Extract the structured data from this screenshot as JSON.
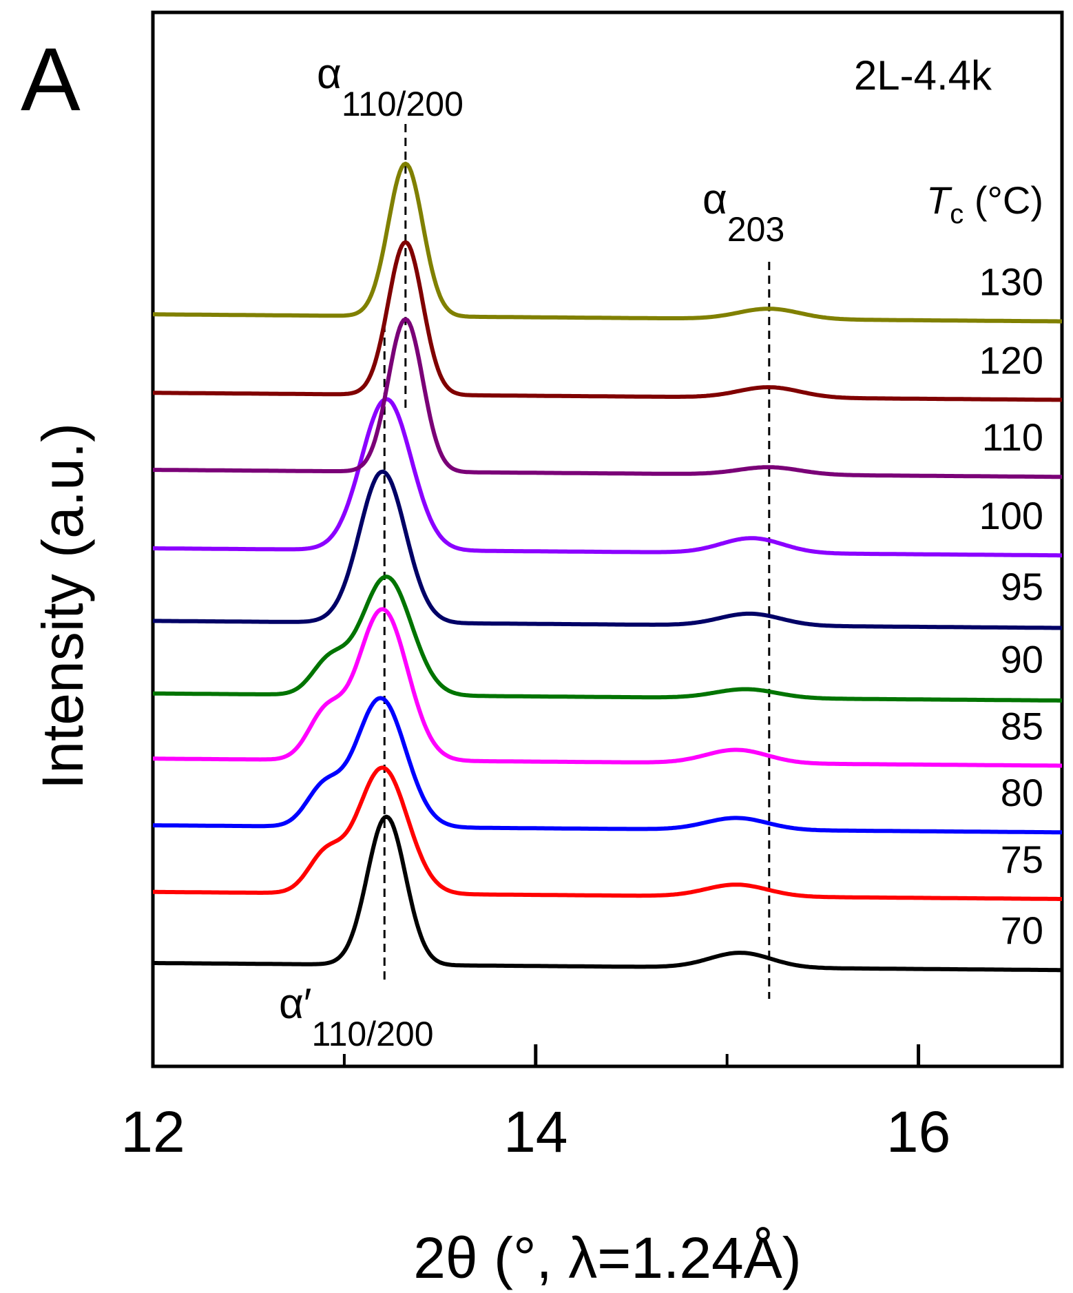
{
  "panel_label": "A",
  "sample_label": "2L-4.4k",
  "colors": {
    "70": "#000000",
    "75": "#ff0000",
    "80": "#0000ff",
    "85": "#ff00ff",
    "90": "#007400",
    "95": "#000066",
    "100": "#8b00ff",
    "110": "#7a0077",
    "120": "#800000",
    "130": "#808000"
  },
  "chart_data": {
    "type": "line",
    "title": "",
    "xlabel": "2θ (°, λ=1.24Å)",
    "ylabel": "Intensity (a.u.)",
    "xlim": [
      12.0,
      16.75
    ],
    "xticks": [
      12,
      14,
      16
    ],
    "xtick_labels": [
      "12",
      "14",
      "16"
    ],
    "minor_xticks": [
      13,
      15
    ],
    "yticks": "none",
    "legend_title": {
      "italic": "T",
      "sub": "c",
      "rest": " (°C)"
    },
    "series": [
      {
        "name": "70",
        "offset": 0.0,
        "peak1": 13.22,
        "h1": 1.0,
        "w1": 0.1,
        "peak2": 15.07,
        "h2": 0.1,
        "w2": 0.16,
        "shoulder": 0.0,
        "baseline": 0.0,
        "slope": -0.01
      },
      {
        "name": "75",
        "offset": 0.48,
        "peak1": 13.2,
        "h1": 0.85,
        "w1": 0.13,
        "peak2": 15.05,
        "h2": 0.08,
        "w2": 0.16,
        "shoulder": 0.25,
        "baseline": 0.0,
        "slope": -0.01
      },
      {
        "name": "80",
        "offset": 0.93,
        "peak1": 13.19,
        "h1": 0.87,
        "w1": 0.13,
        "peak2": 15.05,
        "h2": 0.08,
        "w2": 0.16,
        "shoulder": 0.25,
        "baseline": 0.0,
        "slope": -0.01
      },
      {
        "name": "85",
        "offset": 1.38,
        "peak1": 13.2,
        "h1": 1.02,
        "w1": 0.13,
        "peak2": 15.05,
        "h2": 0.09,
        "w2": 0.16,
        "shoulder": 0.3,
        "baseline": 0.0,
        "slope": -0.01
      },
      {
        "name": "90",
        "offset": 1.83,
        "peak1": 13.22,
        "h1": 0.8,
        "w1": 0.13,
        "peak2": 15.1,
        "h2": 0.06,
        "w2": 0.16,
        "shoulder": 0.22,
        "baseline": -0.01,
        "slope": -0.01
      },
      {
        "name": "95",
        "offset": 2.32,
        "peak1": 13.2,
        "h1": 1.02,
        "w1": 0.12,
        "peak2": 15.12,
        "h2": 0.08,
        "w2": 0.16,
        "shoulder": 0.0,
        "baseline": -0.01,
        "slope": -0.01
      },
      {
        "name": "100",
        "offset": 2.8,
        "peak1": 13.22,
        "h1": 1.02,
        "w1": 0.13,
        "peak2": 15.13,
        "h2": 0.1,
        "w2": 0.16,
        "shoulder": 0.0,
        "baseline": 0.0,
        "slope": -0.01
      },
      {
        "name": "110",
        "offset": 3.33,
        "peak1": 13.32,
        "h1": 1.03,
        "w1": 0.09,
        "peak2": 15.22,
        "h2": 0.05,
        "w2": 0.16,
        "shoulder": 0.0,
        "baseline": 0.0,
        "slope": -0.01
      },
      {
        "name": "120",
        "offset": 3.85,
        "peak1": 13.32,
        "h1": 1.03,
        "w1": 0.09,
        "peak2": 15.22,
        "h2": 0.07,
        "w2": 0.16,
        "shoulder": 0.0,
        "baseline": 0.0,
        "slope": -0.01
      },
      {
        "name": "130",
        "offset": 4.38,
        "peak1": 13.32,
        "h1": 1.03,
        "w1": 0.09,
        "peak2": 15.22,
        "h2": 0.07,
        "w2": 0.16,
        "shoulder": 0.0,
        "baseline": 0.0,
        "slope": -0.01
      }
    ],
    "reference_lines": [
      {
        "name": "α′110/200",
        "x": 13.21
      },
      {
        "name": "α110/200",
        "x": 13.32
      },
      {
        "name": "α203",
        "x": 15.22
      }
    ],
    "annotations": {
      "alpha_110_200": {
        "symbol": "α",
        "sub": "110/200"
      },
      "alpha_203": {
        "symbol": "α",
        "sub": "203"
      },
      "alpha_prime_110_200": {
        "symbol": "α′",
        "sub": "110/200"
      }
    }
  }
}
